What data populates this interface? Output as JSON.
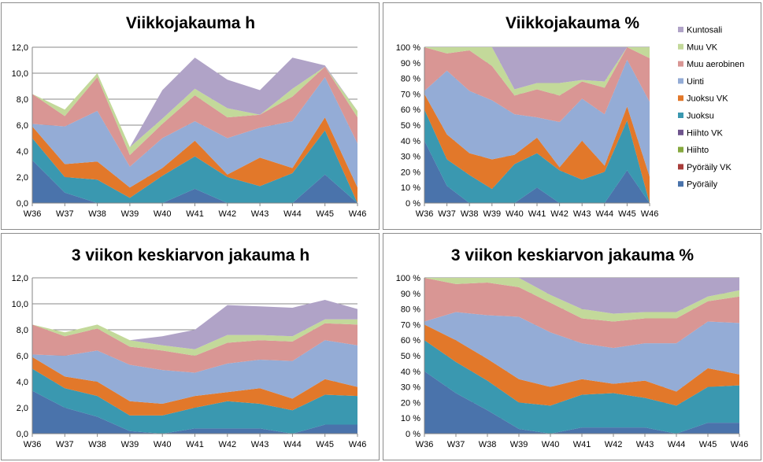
{
  "colors": {
    "Pyöräily": "#4a73ab",
    "Pyöräily VK": "#a83d3a",
    "Hiihto": "#86a83e",
    "Hiihto VK": "#6e548d",
    "Juoksu": "#3a98b0",
    "Juoksu VK": "#e2782a",
    "Uinti": "#94acd6",
    "Muu aerobinen": "#d99694",
    "Muu VK": "#c3d99a",
    "Kuntosali": "#b0a3c7"
  },
  "chart_data": [
    {
      "type": "area",
      "stacked": true,
      "title": "Viikkojakauma h",
      "categories": [
        "W36",
        "W37",
        "W38",
        "W39",
        "W40",
        "W41",
        "W42",
        "W43",
        "W44",
        "W45",
        "W46"
      ],
      "ylim": [
        0,
        12
      ],
      "yticks": [
        "0,0",
        "2,0",
        "4,0",
        "6,0",
        "8,0",
        "10,0",
        "12,0"
      ],
      "grid": true,
      "series": [
        {
          "name": "Pyöräily",
          "values": [
            3.3,
            0.8,
            0.0,
            0.0,
            0.0,
            1.1,
            0.0,
            0.0,
            0.0,
            2.2,
            0.0
          ]
        },
        {
          "name": "Pyöräily VK",
          "values": [
            0,
            0,
            0,
            0,
            0,
            0,
            0,
            0,
            0,
            0,
            0
          ]
        },
        {
          "name": "Hiihto",
          "values": [
            0,
            0,
            0,
            0,
            0,
            0,
            0,
            0,
            0,
            0,
            0
          ]
        },
        {
          "name": "Hiihto VK",
          "values": [
            0,
            0,
            0,
            0,
            0,
            0,
            0,
            0,
            0,
            0,
            0
          ]
        },
        {
          "name": "Juoksu",
          "values": [
            1.7,
            1.2,
            1.8,
            0.4,
            2.1,
            2.5,
            2.0,
            1.3,
            2.3,
            3.4,
            0.0
          ]
        },
        {
          "name": "Juoksu VK",
          "values": [
            0.9,
            1.0,
            1.4,
            0.8,
            0.6,
            1.2,
            0.2,
            2.2,
            0.4,
            1.0,
            1.2
          ]
        },
        {
          "name": "Uinti",
          "values": [
            0.2,
            2.9,
            3.9,
            1.6,
            2.3,
            1.5,
            2.8,
            2.3,
            3.6,
            3.1,
            3.4
          ]
        },
        {
          "name": "Muu aerobinen",
          "values": [
            2.3,
            0.8,
            2.6,
            0.9,
            1.1,
            2.0,
            1.6,
            1.0,
            1.9,
            0.8,
            2.0
          ]
        },
        {
          "name": "Muu VK",
          "values": [
            0.0,
            0.5,
            0.3,
            0.6,
            0.4,
            0.5,
            0.7,
            0.0,
            0.6,
            0.0,
            0.5
          ]
        },
        {
          "name": "Kuntosali",
          "values": [
            0.0,
            0.0,
            0.0,
            0.0,
            2.2,
            2.4,
            2.2,
            1.9,
            2.4,
            0.1,
            0.0
          ]
        }
      ]
    },
    {
      "type": "area",
      "stacked": true,
      "title": "Viikkojakauma %",
      "categories": [
        "W36",
        "W37",
        "W38",
        "W39",
        "W40",
        "W41",
        "W42",
        "W43",
        "W44",
        "W45",
        "W46"
      ],
      "ylim": [
        0,
        100
      ],
      "yticks": [
        "0 %",
        "10 %",
        "20 %",
        "30 %",
        "40 %",
        "50 %",
        "60 %",
        "70 %",
        "80 %",
        "90 %",
        "100 %"
      ],
      "grid": true,
      "legend": "right",
      "series": [
        {
          "name": "Pyöräily",
          "values": [
            40,
            11,
            0,
            0,
            0,
            10,
            0,
            0,
            0,
            21,
            0
          ]
        },
        {
          "name": "Pyöräily VK",
          "values": [
            0,
            0,
            0,
            0,
            0,
            0,
            0,
            0,
            0,
            0,
            0
          ]
        },
        {
          "name": "Hiihto",
          "values": [
            0,
            0,
            0,
            0,
            0,
            0,
            0,
            0,
            0,
            0,
            0
          ]
        },
        {
          "name": "Hiihto VK",
          "values": [
            0,
            0,
            0,
            0,
            0,
            0,
            0,
            0,
            0,
            0,
            0
          ]
        },
        {
          "name": "Juoksu",
          "values": [
            20,
            17,
            18,
            9,
            25,
            22,
            21,
            15,
            20,
            32,
            0
          ]
        },
        {
          "name": "Juoksu VK",
          "values": [
            10,
            16,
            14,
            19,
            6,
            10,
            2,
            25,
            4,
            9,
            17
          ]
        },
        {
          "name": "Uinti",
          "values": [
            2,
            41,
            40,
            38,
            26,
            13,
            29,
            27,
            33,
            30,
            48
          ]
        },
        {
          "name": "Muu aerobinen",
          "values": [
            28,
            11,
            26,
            22,
            12,
            18,
            17,
            11,
            17,
            8,
            28
          ]
        },
        {
          "name": "Muu VK",
          "values": [
            0,
            4,
            2,
            12,
            4,
            4,
            8,
            1,
            4,
            0,
            7
          ]
        },
        {
          "name": "Kuntosali",
          "values": [
            0,
            0,
            0,
            0,
            27,
            23,
            23,
            21,
            22,
            0,
            0
          ]
        }
      ]
    },
    {
      "type": "area",
      "stacked": true,
      "title": "3 viikon keskiarvon jakauma h",
      "categories": [
        "W36",
        "W37",
        "W38",
        "W39",
        "W40",
        "W41",
        "W42",
        "W43",
        "W44",
        "W45",
        "W46"
      ],
      "ylim": [
        0,
        12
      ],
      "yticks": [
        "0,0",
        "2,0",
        "4,0",
        "6,0",
        "8,0",
        "10,0",
        "12,0"
      ],
      "grid": true,
      "series": [
        {
          "name": "Pyöräily",
          "values": [
            3.3,
            2.0,
            1.3,
            0.2,
            0.0,
            0.4,
            0.4,
            0.4,
            0.0,
            0.7,
            0.7
          ]
        },
        {
          "name": "Pyöräily VK",
          "values": [
            0,
            0,
            0,
            0,
            0,
            0,
            0,
            0,
            0,
            0,
            0
          ]
        },
        {
          "name": "Hiihto",
          "values": [
            0,
            0,
            0,
            0,
            0,
            0,
            0,
            0,
            0,
            0,
            0
          ]
        },
        {
          "name": "Hiihto VK",
          "values": [
            0,
            0,
            0,
            0,
            0,
            0,
            0,
            0,
            0,
            0,
            0
          ]
        },
        {
          "name": "Juoksu",
          "values": [
            1.7,
            1.5,
            1.6,
            1.2,
            1.4,
            1.6,
            2.1,
            1.9,
            1.8,
            2.3,
            2.2
          ]
        },
        {
          "name": "Juoksu VK",
          "values": [
            0.9,
            0.9,
            1.1,
            1.1,
            0.9,
            0.9,
            0.7,
            1.2,
            0.9,
            1.2,
            0.7
          ]
        },
        {
          "name": "Uinti",
          "values": [
            0.2,
            1.6,
            2.4,
            2.8,
            2.6,
            1.8,
            2.2,
            2.2,
            2.9,
            3.0,
            3.2
          ]
        },
        {
          "name": "Muu aerobinen",
          "values": [
            2.3,
            1.5,
            1.7,
            1.4,
            1.5,
            1.3,
            1.6,
            1.5,
            1.5,
            1.3,
            1.6
          ]
        },
        {
          "name": "Muu VK",
          "values": [
            0.0,
            0.3,
            0.3,
            0.5,
            0.4,
            0.5,
            0.6,
            0.4,
            0.4,
            0.3,
            0.4
          ]
        },
        {
          "name": "Kuntosali",
          "values": [
            0.0,
            0.0,
            0.0,
            0.0,
            0.7,
            1.5,
            2.3,
            2.2,
            2.2,
            1.5,
            0.8
          ]
        }
      ]
    },
    {
      "type": "area",
      "stacked": true,
      "title": "3 viikon keskiarvon jakauma %",
      "categories": [
        "W36",
        "W37",
        "W38",
        "W39",
        "W40",
        "W41",
        "W42",
        "W43",
        "W44",
        "W45",
        "W46"
      ],
      "ylim": [
        0,
        100
      ],
      "yticks": [
        "0 %",
        "10 %",
        "20 %",
        "30 %",
        "40 %",
        "50 %",
        "60 %",
        "70 %",
        "80 %",
        "90 %",
        "100 %"
      ],
      "grid": true,
      "series": [
        {
          "name": "Pyöräily",
          "values": [
            40,
            26,
            15,
            3,
            0,
            4,
            4,
            4,
            0,
            7,
            7
          ]
        },
        {
          "name": "Pyöräily VK",
          "values": [
            0,
            0,
            0,
            0,
            0,
            0,
            0,
            0,
            0,
            0,
            0
          ]
        },
        {
          "name": "Hiihto",
          "values": [
            0,
            0,
            0,
            0,
            0,
            0,
            0,
            0,
            0,
            0,
            0
          ]
        },
        {
          "name": "Hiihto VK",
          "values": [
            0,
            0,
            0,
            0,
            0,
            0,
            0,
            0,
            0,
            0,
            0
          ]
        },
        {
          "name": "Juoksu",
          "values": [
            20,
            20,
            19,
            17,
            18,
            21,
            22,
            19,
            18,
            23,
            24
          ]
        },
        {
          "name": "Juoksu VK",
          "values": [
            10,
            14,
            14,
            15,
            12,
            10,
            6,
            11,
            9,
            12,
            7
          ]
        },
        {
          "name": "Uinti",
          "values": [
            2,
            18,
            28,
            40,
            35,
            23,
            23,
            24,
            31,
            30,
            33
          ]
        },
        {
          "name": "Muu aerobinen",
          "values": [
            28,
            18,
            21,
            19,
            19,
            16,
            17,
            16,
            16,
            13,
            17
          ]
        },
        {
          "name": "Muu VK",
          "values": [
            0,
            4,
            3,
            6,
            5,
            6,
            5,
            4,
            4,
            3,
            4
          ]
        },
        {
          "name": "Kuntosali",
          "values": [
            0,
            0,
            0,
            0,
            11,
            20,
            23,
            22,
            22,
            12,
            8
          ]
        }
      ]
    }
  ]
}
